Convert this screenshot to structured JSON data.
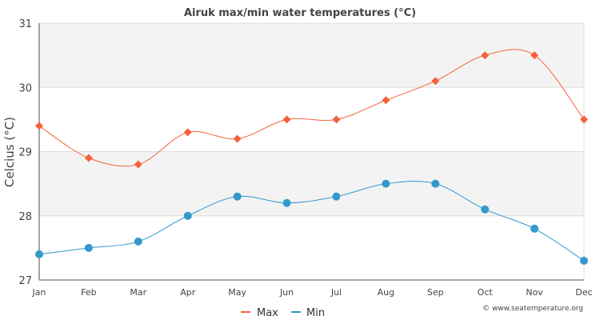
{
  "chart_data": {
    "type": "line",
    "title": "Airuk max/min water temperatures (°C)",
    "xlabel": "",
    "ylabel": "Celcius (°C)",
    "categories": [
      "Jan",
      "Feb",
      "Mar",
      "Apr",
      "May",
      "Jun",
      "Jul",
      "Aug",
      "Sep",
      "Oct",
      "Nov",
      "Dec"
    ],
    "ylim": [
      27,
      31
    ],
    "yticks": [
      "27",
      "28",
      "29",
      "30",
      "31"
    ],
    "grid": true,
    "legend_position": "bottom-center",
    "series": [
      {
        "name": "Max",
        "color": "#f4623a",
        "marker": "diamond",
        "values": [
          29.4,
          28.9,
          28.8,
          29.3,
          29.2,
          29.5,
          29.5,
          29.8,
          30.1,
          30.5,
          30.5,
          29.5
        ]
      },
      {
        "name": "Min",
        "color": "#3399cc",
        "marker": "circle",
        "values": [
          27.4,
          27.5,
          27.6,
          28.0,
          28.3,
          28.2,
          28.3,
          28.5,
          28.5,
          28.1,
          27.8,
          27.3
        ]
      }
    ],
    "credit": "© www.seatemperature.org"
  }
}
